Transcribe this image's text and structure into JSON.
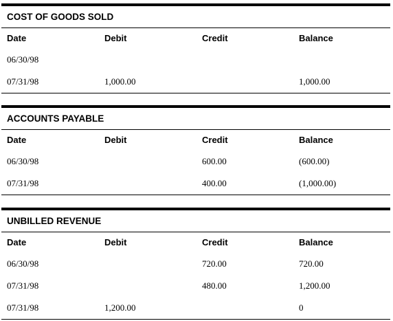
{
  "columns": [
    "Date",
    "Debit",
    "Credit",
    "Balance"
  ],
  "ledgers": [
    {
      "title": "COST OF GOODS SOLD",
      "rows": [
        [
          "06/30/98",
          "",
          "",
          ""
        ],
        [
          "07/31/98",
          "1,000.00",
          "",
          "1,000.00"
        ]
      ]
    },
    {
      "title": "ACCOUNTS PAYABLE",
      "rows": [
        [
          "06/30/98",
          "",
          "600.00",
          "(600.00)"
        ],
        [
          "07/31/98",
          "",
          "400.00",
          "(1,000.00)"
        ]
      ]
    },
    {
      "title": "UNBILLED REVENUE",
      "rows": [
        [
          "06/30/98",
          "",
          "720.00",
          "720.00"
        ],
        [
          "07/31/98",
          "",
          "480.00",
          "1,200.00"
        ],
        [
          "07/31/98",
          "1,200.00",
          "",
          "0"
        ]
      ]
    }
  ]
}
